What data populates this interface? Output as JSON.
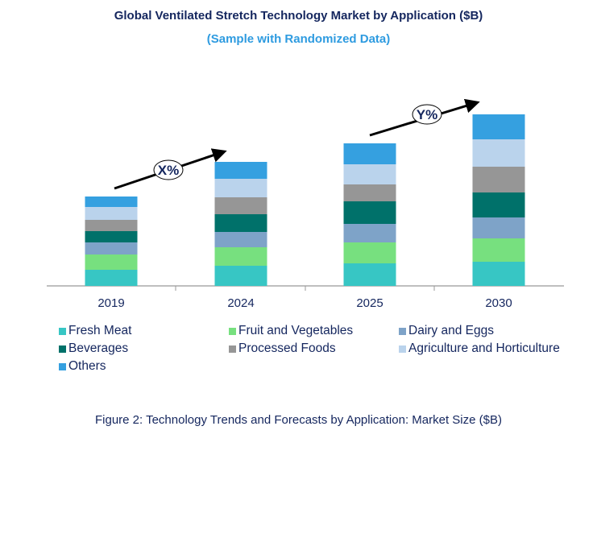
{
  "chart_data": {
    "type": "bar",
    "stacked": true,
    "title": "Global Ventilated Stretch Technology Market by Application ($B)",
    "subtitle": "(Sample with Randomized Data)",
    "caption": "Figure 2: Technology Trends and Forecasts by Application: Market Size ($B)",
    "categories": [
      "2019",
      "2024",
      "2025",
      "2030"
    ],
    "series": [
      {
        "name": "Fresh Meat",
        "color": "#37c6c4",
        "values": [
          2.0,
          2.5,
          2.8,
          3.0
        ]
      },
      {
        "name": "Fruit and Vegetables",
        "color": "#77e07f",
        "values": [
          1.9,
          2.3,
          2.6,
          2.9
        ]
      },
      {
        "name": "Dairy and Eggs",
        "color": "#7ea3c8",
        "values": [
          1.5,
          1.9,
          2.3,
          2.6
        ]
      },
      {
        "name": "Beverages",
        "color": "#00716a",
        "values": [
          1.4,
          2.2,
          2.8,
          3.1
        ]
      },
      {
        "name": "Processed Foods",
        "color": "#969696",
        "values": [
          1.4,
          2.1,
          2.1,
          3.2
        ]
      },
      {
        "name": "Agriculture and Horticulture",
        "color": "#bad3ec",
        "values": [
          1.6,
          2.3,
          2.5,
          3.4
        ]
      },
      {
        "name": "Others",
        "color": "#35a0e0",
        "values": [
          1.3,
          2.1,
          2.6,
          3.1
        ]
      }
    ],
    "annotations": [
      {
        "text": "X%",
        "from": "2019",
        "to": "2024"
      },
      {
        "text": "Y%",
        "from": "2025",
        "to": "2030"
      }
    ],
    "ylim": [
      0,
      22
    ],
    "grid": false,
    "y_axis_shown": false,
    "legend_placement": "bottom"
  }
}
